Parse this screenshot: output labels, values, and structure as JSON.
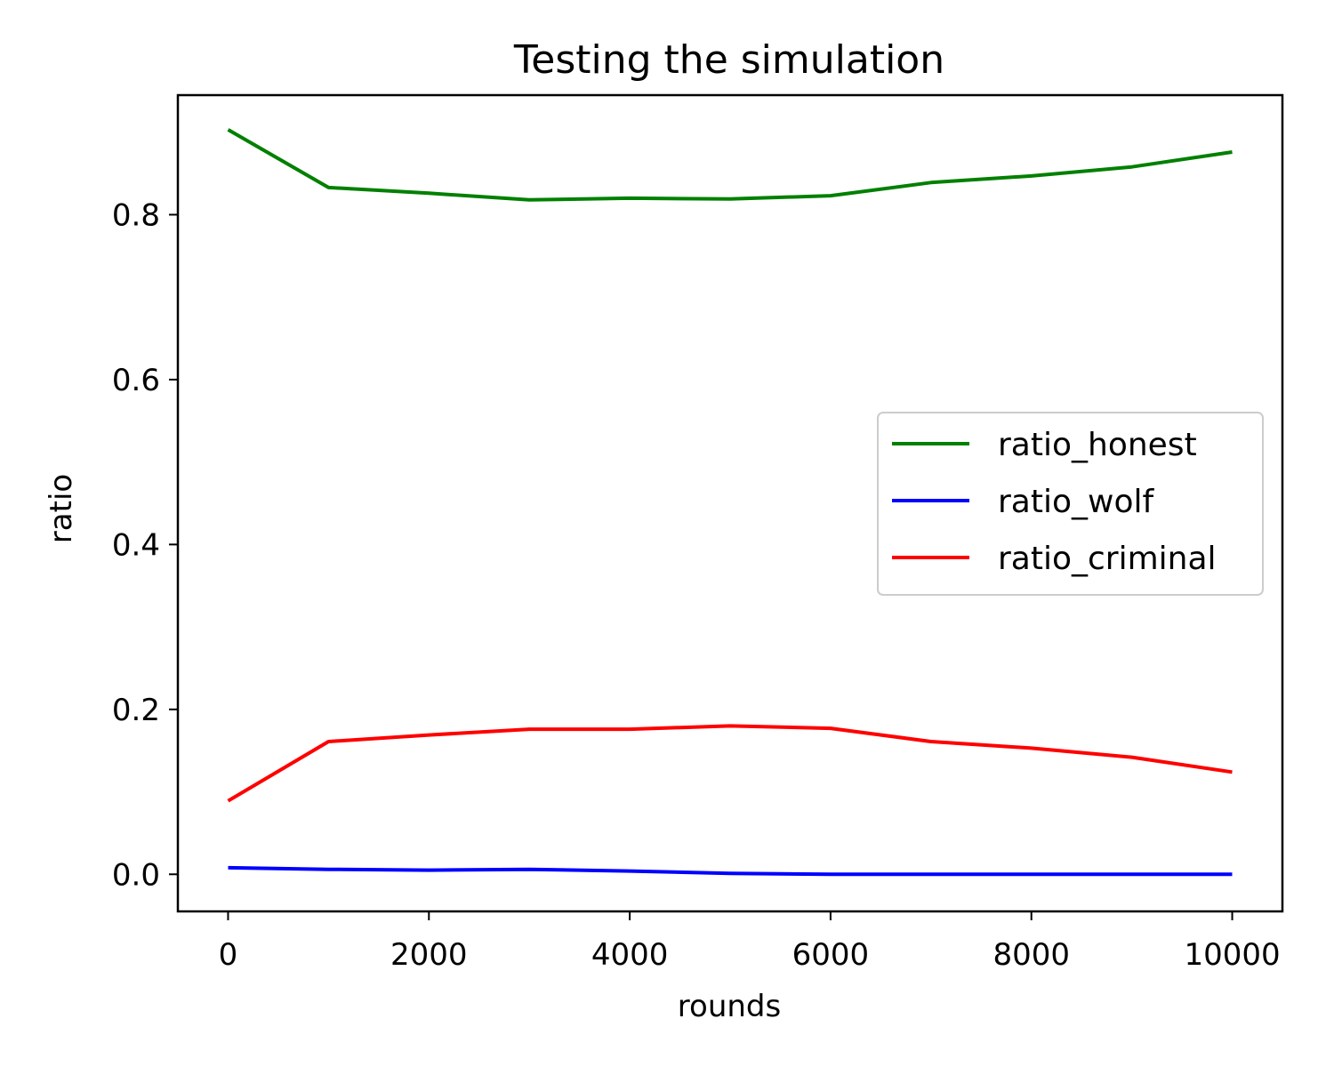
{
  "chart_data": {
    "type": "line",
    "title": "Testing the simulation",
    "xlabel": "rounds",
    "ylabel": "ratio",
    "xlim": [
      -500,
      10500
    ],
    "ylim": [
      -0.045,
      0.945
    ],
    "xticks": [
      0,
      2000,
      4000,
      6000,
      8000,
      10000
    ],
    "xtick_labels": [
      "0",
      "2000",
      "4000",
      "6000",
      "8000",
      "10000"
    ],
    "yticks": [
      0.0,
      0.2,
      0.4,
      0.6,
      0.8
    ],
    "ytick_labels": [
      "0.0",
      "0.2",
      "0.4",
      "0.6",
      "0.8"
    ],
    "grid": false,
    "legend_position": "center-right",
    "x": [
      0,
      1000,
      2000,
      3000,
      4000,
      5000,
      6000,
      7000,
      8000,
      9000,
      10000
    ],
    "series": [
      {
        "name": "ratio_honest",
        "color": "#008000",
        "values": [
          0.903,
          0.833,
          0.826,
          0.818,
          0.82,
          0.819,
          0.823,
          0.839,
          0.847,
          0.858,
          0.876
        ]
      },
      {
        "name": "ratio_wolf",
        "color": "#0000ff",
        "values": [
          0.008,
          0.006,
          0.005,
          0.006,
          0.004,
          0.001,
          0.0,
          0.0,
          0.0,
          0.0,
          0.0
        ]
      },
      {
        "name": "ratio_criminal",
        "color": "#ff0000",
        "values": [
          0.089,
          0.161,
          0.169,
          0.176,
          0.176,
          0.18,
          0.177,
          0.161,
          0.153,
          0.142,
          0.124
        ]
      }
    ]
  }
}
